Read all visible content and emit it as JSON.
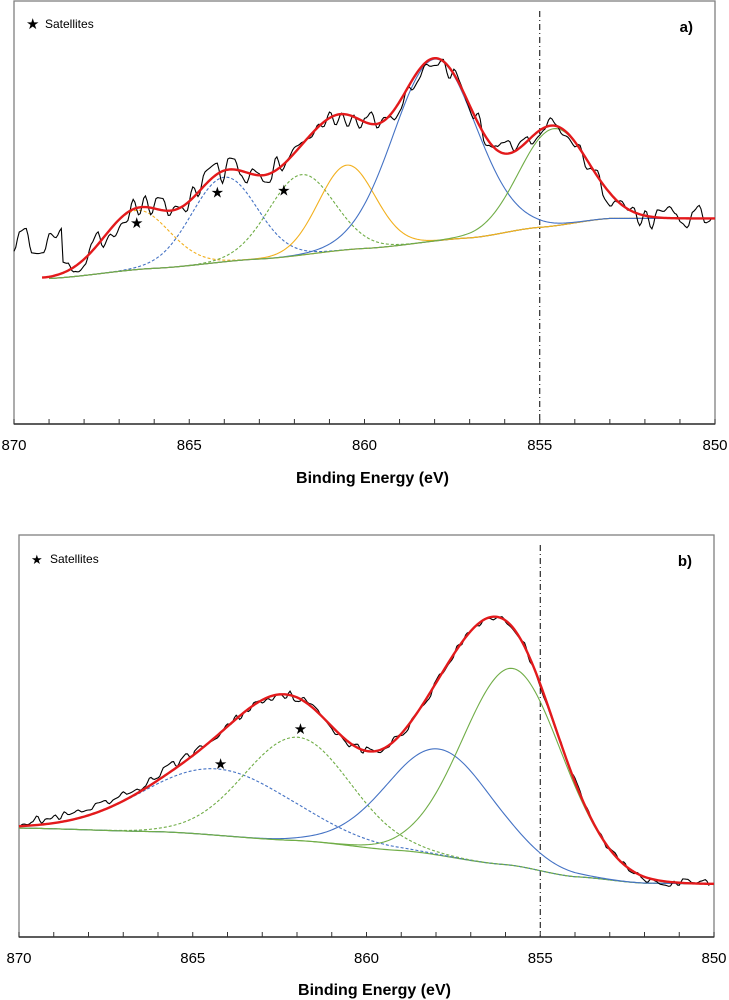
{
  "chart_data": [
    {
      "type": "line",
      "panel_label": "a)",
      "xlabel": "Binding Energy (eV)",
      "ylabel": "",
      "xlim": [
        870,
        850
      ],
      "ylim": [
        0,
        100
      ],
      "x_tick_labels": [
        "870",
        "865",
        "860",
        "855",
        "850"
      ],
      "x_ticks": [
        870,
        865,
        860,
        855,
        850
      ],
      "minor_tick_step": 1,
      "y_ticks_shown": false,
      "grid": false,
      "legend": {
        "position": "top-left",
        "entries": [
          {
            "marker": "star",
            "label": "Satellites"
          }
        ]
      },
      "reference_line": {
        "x": 855,
        "style": "dash-dot",
        "color": "#000000"
      },
      "background": {
        "x": [
          869,
          866,
          863,
          860,
          857,
          855,
          853,
          850
        ],
        "y": [
          34.4,
          36.8,
          39.0,
          41.5,
          44.0,
          46.5,
          48.6,
          48.6
        ],
        "color": "#d9a07a"
      },
      "components": [
        {
          "name": "satellite-1",
          "center": 866.5,
          "height": 14,
          "fwhm": 2.2,
          "color": "#f2b01e",
          "style": "dashed"
        },
        {
          "name": "satellite-2",
          "center": 864.0,
          "height": 20,
          "fwhm": 2.2,
          "color": "#4472c4",
          "style": "dashed"
        },
        {
          "name": "satellite-3",
          "center": 861.8,
          "height": 19,
          "fwhm": 2.2,
          "color": "#70ad47",
          "style": "dashed"
        },
        {
          "name": "peak-4",
          "center": 860.5,
          "height": 20,
          "fwhm": 1.9,
          "color": "#f2b01e",
          "style": "solid"
        },
        {
          "name": "peak-5",
          "center": 858.0,
          "height": 43,
          "fwhm": 2.8,
          "color": "#4472c4",
          "style": "solid"
        },
        {
          "name": "peak-6",
          "center": 854.6,
          "height": 23,
          "fwhm": 2.3,
          "color": "#70ad47",
          "style": "solid"
        }
      ],
      "envelope": {
        "color": "#e31a1c",
        "x_start": 869.2,
        "x_end": 850
      },
      "raw_data": {
        "color": "#000000",
        "noise_amplitude": 3.2,
        "x_start": 870,
        "x_end": 850
      },
      "satellite_markers": [
        {
          "x": 866.5,
          "y": 47.5
        },
        {
          "x": 864.2,
          "y": 54.7
        },
        {
          "x": 862.3,
          "y": 55.2
        }
      ]
    },
    {
      "type": "line",
      "panel_label": "b)",
      "xlabel": "Binding Energy (eV)",
      "ylabel": "",
      "xlim": [
        870,
        850
      ],
      "ylim": [
        0,
        100
      ],
      "x_tick_labels": [
        "870",
        "865",
        "860",
        "855",
        "850"
      ],
      "x_ticks": [
        870,
        865,
        860,
        855,
        850
      ],
      "minor_tick_step": 1,
      "y_ticks_shown": false,
      "grid": false,
      "legend": {
        "position": "top-left",
        "entries": [
          {
            "marker": "star",
            "label": "Satellites"
          }
        ]
      },
      "reference_line": {
        "x": 855,
        "style": "dash-dot",
        "color": "#000000"
      },
      "background": {
        "x": [
          870,
          866,
          862,
          859,
          856,
          854,
          852,
          850
        ],
        "y": [
          27.1,
          26.2,
          24.0,
          21.5,
          18.0,
          15.0,
          13.4,
          13.2
        ],
        "color": "#70ad47"
      },
      "components": [
        {
          "name": "satellite-1",
          "center": 864.3,
          "height": 16.5,
          "fwhm": 5.0,
          "color": "#4472c4",
          "style": "dashed"
        },
        {
          "name": "satellite-2",
          "center": 862.0,
          "height": 25.7,
          "fwhm": 3.6,
          "color": "#70ad47",
          "style": "dashed"
        },
        {
          "name": "peak-3",
          "center": 857.9,
          "height": 26.4,
          "fwhm": 3.6,
          "color": "#4472c4",
          "style": "solid"
        },
        {
          "name": "peak-4",
          "center": 855.8,
          "height": 49.0,
          "fwhm": 3.4,
          "color": "#70ad47",
          "style": "solid"
        }
      ],
      "envelope": {
        "color": "#e31a1c",
        "x_start": 870,
        "x_end": 850
      },
      "raw_data": {
        "color": "#000000",
        "noise_amplitude": 1.2,
        "x_start": 870,
        "x_end": 850
      },
      "satellite_markers": [
        {
          "x": 864.2,
          "y": 43.0
        },
        {
          "x": 861.9,
          "y": 51.7
        }
      ]
    }
  ]
}
